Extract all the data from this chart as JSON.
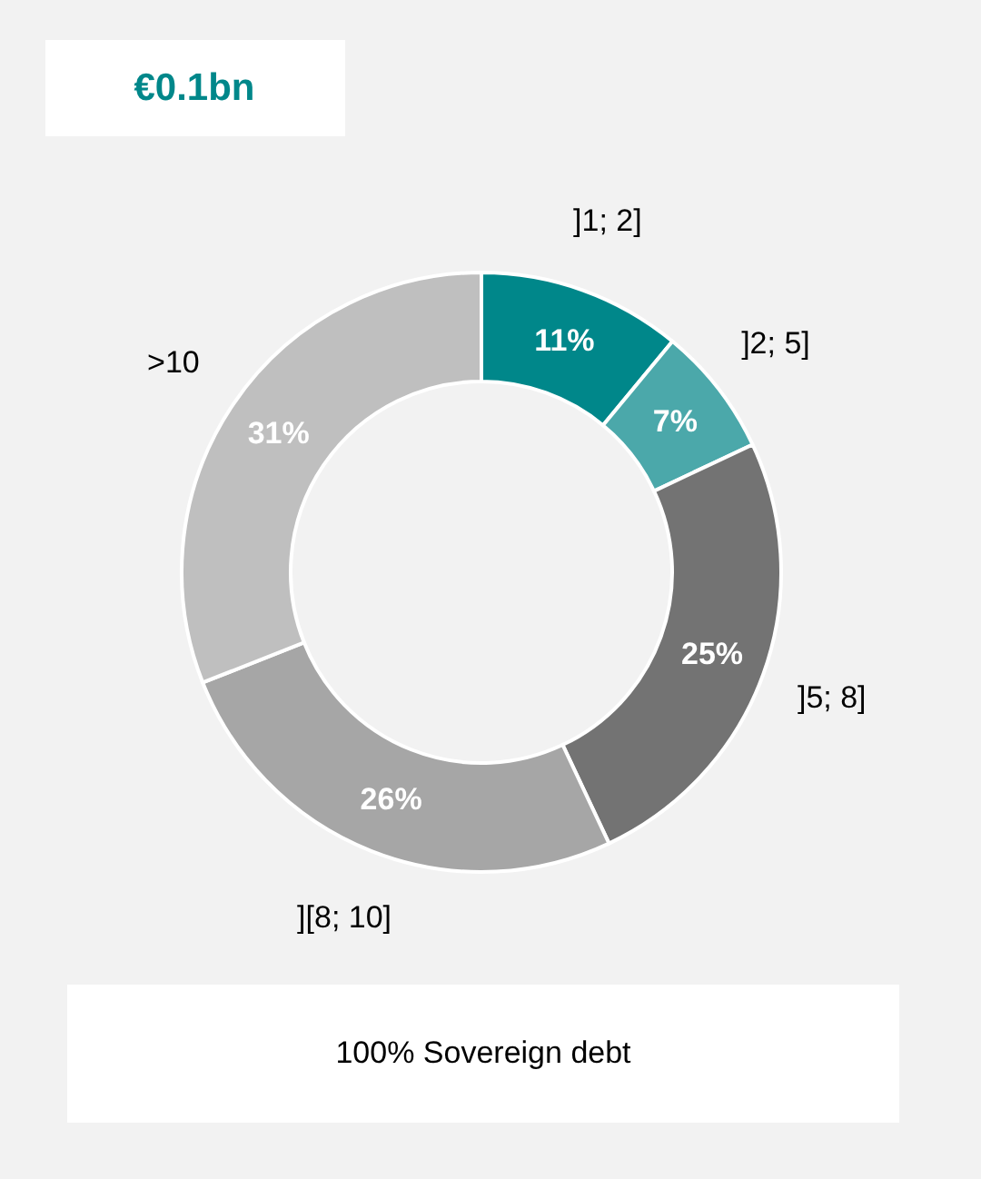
{
  "chart_data": {
    "type": "donut",
    "title": "€0.1bn",
    "categories": [
      "]1; 2]",
      "]2; 5]",
      "]5; 8]",
      "][8; 10]",
      ">10"
    ],
    "values": [
      11,
      7,
      25,
      26,
      31
    ],
    "value_labels": [
      "11%",
      "7%",
      "25%",
      "26%",
      "31%"
    ],
    "colors": [
      "#00878a",
      "#4ba8aa",
      "#737373",
      "#a6a6a6",
      "#bfbfbf"
    ],
    "annotations": [
      "100% Sovereign debt"
    ]
  }
}
